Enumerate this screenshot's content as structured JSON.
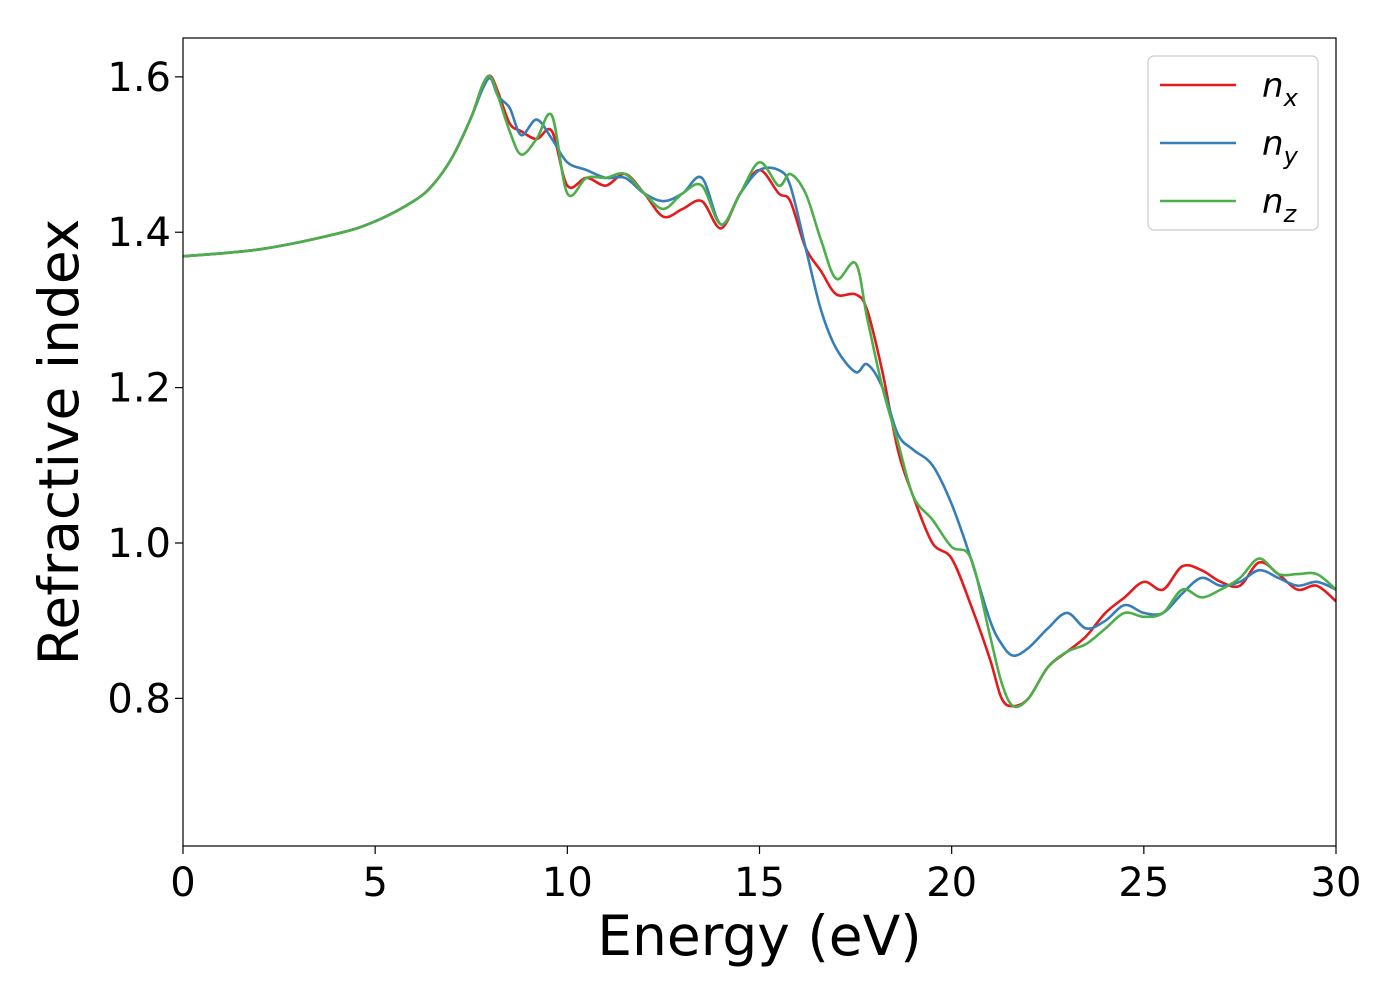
{
  "chart_data": {
    "type": "line",
    "xlabel": "Energy (eV)",
    "ylabel": "Refractive index",
    "xlim": [
      0,
      30
    ],
    "ylim": [
      0.61,
      1.65
    ],
    "xticks": [
      0,
      5,
      10,
      15,
      20,
      25,
      30
    ],
    "xtick_labels": [
      "0",
      "5",
      "10",
      "15",
      "20",
      "25",
      "30"
    ],
    "yticks": [
      0.8,
      1.0,
      1.2,
      1.4,
      1.6
    ],
    "ytick_labels": [
      "0.8",
      "1.0",
      "1.2",
      "1.4",
      "1.6"
    ],
    "grid": false,
    "legend_position": "top-right",
    "series": [
      {
        "name": "n_x",
        "label_main": "n",
        "label_sub": "x",
        "color": "#e41a1c",
        "x": [
          0,
          2,
          4,
          5,
          6,
          6.5,
          7,
          7.5,
          7.8,
          8.0,
          8.2,
          8.5,
          8.8,
          9.2,
          9.6,
          10.0,
          10.5,
          11.0,
          11.5,
          12.0,
          12.5,
          13.0,
          13.5,
          14.0,
          14.5,
          15.0,
          15.5,
          15.8,
          16.2,
          16.6,
          17.0,
          17.5,
          17.8,
          18.2,
          18.6,
          19.0,
          19.5,
          20.0,
          20.5,
          21.0,
          21.3,
          21.6,
          22.0,
          22.5,
          23.0,
          23.5,
          24.0,
          24.5,
          25.0,
          25.5,
          26.0,
          26.5,
          27.0,
          27.5,
          28.0,
          28.5,
          29.0,
          29.5,
          30.0
        ],
        "y": [
          1.369,
          1.378,
          1.398,
          1.414,
          1.44,
          1.461,
          1.496,
          1.548,
          1.59,
          1.601,
          1.58,
          1.54,
          1.53,
          1.52,
          1.53,
          1.46,
          1.47,
          1.46,
          1.475,
          1.45,
          1.42,
          1.43,
          1.44,
          1.405,
          1.45,
          1.48,
          1.45,
          1.44,
          1.38,
          1.35,
          1.32,
          1.32,
          1.3,
          1.22,
          1.12,
          1.06,
          1.0,
          0.98,
          0.92,
          0.85,
          0.8,
          0.79,
          0.8,
          0.84,
          0.86,
          0.88,
          0.91,
          0.93,
          0.95,
          0.94,
          0.97,
          0.965,
          0.95,
          0.945,
          0.975,
          0.96,
          0.94,
          0.945,
          0.925
        ]
      },
      {
        "name": "n_y",
        "label_main": "n",
        "label_sub": "y",
        "color": "#377eb8",
        "x": [
          0,
          2,
          4,
          5,
          6,
          6.5,
          7,
          7.5,
          7.8,
          8.0,
          8.2,
          8.5,
          8.8,
          9.2,
          9.6,
          10.0,
          10.5,
          11.0,
          11.5,
          12.0,
          12.5,
          13.0,
          13.5,
          14.0,
          14.5,
          15.0,
          15.5,
          15.8,
          16.2,
          16.6,
          17.0,
          17.5,
          17.8,
          18.2,
          18.6,
          19.0,
          19.5,
          20.0,
          20.5,
          21.0,
          21.3,
          21.6,
          22.0,
          22.5,
          23.0,
          23.5,
          24.0,
          24.5,
          25.0,
          25.5,
          26.0,
          26.5,
          27.0,
          27.5,
          28.0,
          28.5,
          29.0,
          29.5,
          30.0
        ],
        "y": [
          1.369,
          1.378,
          1.398,
          1.414,
          1.44,
          1.461,
          1.496,
          1.548,
          1.585,
          1.598,
          1.575,
          1.56,
          1.525,
          1.545,
          1.52,
          1.49,
          1.48,
          1.47,
          1.47,
          1.45,
          1.44,
          1.45,
          1.47,
          1.41,
          1.45,
          1.48,
          1.48,
          1.46,
          1.38,
          1.3,
          1.25,
          1.22,
          1.23,
          1.2,
          1.14,
          1.12,
          1.1,
          1.05,
          0.98,
          0.9,
          0.87,
          0.855,
          0.865,
          0.89,
          0.91,
          0.89,
          0.9,
          0.92,
          0.91,
          0.91,
          0.935,
          0.955,
          0.945,
          0.95,
          0.965,
          0.955,
          0.945,
          0.95,
          0.94
        ]
      },
      {
        "name": "n_z",
        "label_main": "n",
        "label_sub": "z",
        "color": "#4daf4a",
        "x": [
          0,
          2,
          4,
          5,
          6,
          6.5,
          7,
          7.5,
          7.8,
          8.0,
          8.2,
          8.5,
          8.8,
          9.2,
          9.6,
          10.0,
          10.5,
          11.0,
          11.5,
          12.0,
          12.5,
          13.0,
          13.5,
          14.0,
          14.5,
          15.0,
          15.5,
          15.8,
          16.2,
          16.6,
          17.0,
          17.5,
          17.8,
          18.2,
          18.6,
          19.0,
          19.5,
          20.0,
          20.5,
          21.0,
          21.3,
          21.6,
          22.0,
          22.5,
          23.0,
          23.5,
          24.0,
          24.5,
          25.0,
          25.5,
          26.0,
          26.5,
          27.0,
          27.5,
          28.0,
          28.5,
          29.0,
          29.5,
          30.0
        ],
        "y": [
          1.369,
          1.378,
          1.398,
          1.414,
          1.44,
          1.461,
          1.496,
          1.548,
          1.59,
          1.6,
          1.575,
          1.53,
          1.5,
          1.52,
          1.55,
          1.45,
          1.47,
          1.47,
          1.475,
          1.45,
          1.43,
          1.45,
          1.46,
          1.41,
          1.45,
          1.49,
          1.46,
          1.475,
          1.45,
          1.39,
          1.34,
          1.36,
          1.29,
          1.2,
          1.13,
          1.06,
          1.03,
          0.995,
          0.98,
          0.88,
          0.82,
          0.79,
          0.8,
          0.84,
          0.86,
          0.87,
          0.89,
          0.91,
          0.905,
          0.91,
          0.94,
          0.93,
          0.94,
          0.955,
          0.98,
          0.96,
          0.96,
          0.96,
          0.94
        ]
      }
    ]
  }
}
